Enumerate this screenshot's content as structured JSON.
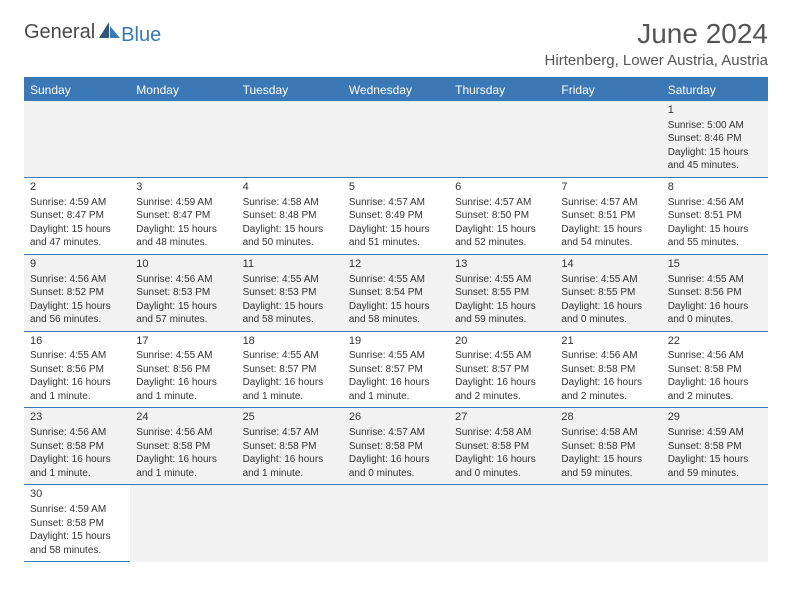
{
  "branding": {
    "general": "General",
    "blue": "Blue"
  },
  "colors": {
    "primary": "#3b78b5",
    "header_text": "#ffffff",
    "row_alt_bg": "#f2f2f2",
    "text": "#333333"
  },
  "title": {
    "month_year": "June 2024",
    "location": "Hirtenberg, Lower Austria, Austria"
  },
  "day_headers": [
    "Sunday",
    "Monday",
    "Tuesday",
    "Wednesday",
    "Thursday",
    "Friday",
    "Saturday"
  ],
  "weeks": [
    [
      null,
      null,
      null,
      null,
      null,
      null,
      {
        "num": "1",
        "lines": [
          "Sunrise: 5:00 AM",
          "Sunset: 8:46 PM",
          "Daylight: 15 hours and 45 minutes."
        ]
      }
    ],
    [
      {
        "num": "2",
        "lines": [
          "Sunrise: 4:59 AM",
          "Sunset: 8:47 PM",
          "Daylight: 15 hours and 47 minutes."
        ]
      },
      {
        "num": "3",
        "lines": [
          "Sunrise: 4:59 AM",
          "Sunset: 8:47 PM",
          "Daylight: 15 hours and 48 minutes."
        ]
      },
      {
        "num": "4",
        "lines": [
          "Sunrise: 4:58 AM",
          "Sunset: 8:48 PM",
          "Daylight: 15 hours and 50 minutes."
        ]
      },
      {
        "num": "5",
        "lines": [
          "Sunrise: 4:57 AM",
          "Sunset: 8:49 PM",
          "Daylight: 15 hours and 51 minutes."
        ]
      },
      {
        "num": "6",
        "lines": [
          "Sunrise: 4:57 AM",
          "Sunset: 8:50 PM",
          "Daylight: 15 hours and 52 minutes."
        ]
      },
      {
        "num": "7",
        "lines": [
          "Sunrise: 4:57 AM",
          "Sunset: 8:51 PM",
          "Daylight: 15 hours and 54 minutes."
        ]
      },
      {
        "num": "8",
        "lines": [
          "Sunrise: 4:56 AM",
          "Sunset: 8:51 PM",
          "Daylight: 15 hours and 55 minutes."
        ]
      }
    ],
    [
      {
        "num": "9",
        "lines": [
          "Sunrise: 4:56 AM",
          "Sunset: 8:52 PM",
          "Daylight: 15 hours and 56 minutes."
        ]
      },
      {
        "num": "10",
        "lines": [
          "Sunrise: 4:56 AM",
          "Sunset: 8:53 PM",
          "Daylight: 15 hours and 57 minutes."
        ]
      },
      {
        "num": "11",
        "lines": [
          "Sunrise: 4:55 AM",
          "Sunset: 8:53 PM",
          "Daylight: 15 hours and 58 minutes."
        ]
      },
      {
        "num": "12",
        "lines": [
          "Sunrise: 4:55 AM",
          "Sunset: 8:54 PM",
          "Daylight: 15 hours and 58 minutes."
        ]
      },
      {
        "num": "13",
        "lines": [
          "Sunrise: 4:55 AM",
          "Sunset: 8:55 PM",
          "Daylight: 15 hours and 59 minutes."
        ]
      },
      {
        "num": "14",
        "lines": [
          "Sunrise: 4:55 AM",
          "Sunset: 8:55 PM",
          "Daylight: 16 hours and 0 minutes."
        ]
      },
      {
        "num": "15",
        "lines": [
          "Sunrise: 4:55 AM",
          "Sunset: 8:56 PM",
          "Daylight: 16 hours and 0 minutes."
        ]
      }
    ],
    [
      {
        "num": "16",
        "lines": [
          "Sunrise: 4:55 AM",
          "Sunset: 8:56 PM",
          "Daylight: 16 hours and 1 minute."
        ]
      },
      {
        "num": "17",
        "lines": [
          "Sunrise: 4:55 AM",
          "Sunset: 8:56 PM",
          "Daylight: 16 hours and 1 minute."
        ]
      },
      {
        "num": "18",
        "lines": [
          "Sunrise: 4:55 AM",
          "Sunset: 8:57 PM",
          "Daylight: 16 hours and 1 minute."
        ]
      },
      {
        "num": "19",
        "lines": [
          "Sunrise: 4:55 AM",
          "Sunset: 8:57 PM",
          "Daylight: 16 hours and 1 minute."
        ]
      },
      {
        "num": "20",
        "lines": [
          "Sunrise: 4:55 AM",
          "Sunset: 8:57 PM",
          "Daylight: 16 hours and 2 minutes."
        ]
      },
      {
        "num": "21",
        "lines": [
          "Sunrise: 4:56 AM",
          "Sunset: 8:58 PM",
          "Daylight: 16 hours and 2 minutes."
        ]
      },
      {
        "num": "22",
        "lines": [
          "Sunrise: 4:56 AM",
          "Sunset: 8:58 PM",
          "Daylight: 16 hours and 2 minutes."
        ]
      }
    ],
    [
      {
        "num": "23",
        "lines": [
          "Sunrise: 4:56 AM",
          "Sunset: 8:58 PM",
          "Daylight: 16 hours and 1 minute."
        ]
      },
      {
        "num": "24",
        "lines": [
          "Sunrise: 4:56 AM",
          "Sunset: 8:58 PM",
          "Daylight: 16 hours and 1 minute."
        ]
      },
      {
        "num": "25",
        "lines": [
          "Sunrise: 4:57 AM",
          "Sunset: 8:58 PM",
          "Daylight: 16 hours and 1 minute."
        ]
      },
      {
        "num": "26",
        "lines": [
          "Sunrise: 4:57 AM",
          "Sunset: 8:58 PM",
          "Daylight: 16 hours and 0 minutes."
        ]
      },
      {
        "num": "27",
        "lines": [
          "Sunrise: 4:58 AM",
          "Sunset: 8:58 PM",
          "Daylight: 16 hours and 0 minutes."
        ]
      },
      {
        "num": "28",
        "lines": [
          "Sunrise: 4:58 AM",
          "Sunset: 8:58 PM",
          "Daylight: 15 hours and 59 minutes."
        ]
      },
      {
        "num": "29",
        "lines": [
          "Sunrise: 4:59 AM",
          "Sunset: 8:58 PM",
          "Daylight: 15 hours and 59 minutes."
        ]
      }
    ],
    [
      {
        "num": "30",
        "lines": [
          "Sunrise: 4:59 AM",
          "Sunset: 8:58 PM",
          "Daylight: 15 hours and 58 minutes."
        ]
      },
      null,
      null,
      null,
      null,
      null,
      null
    ]
  ]
}
